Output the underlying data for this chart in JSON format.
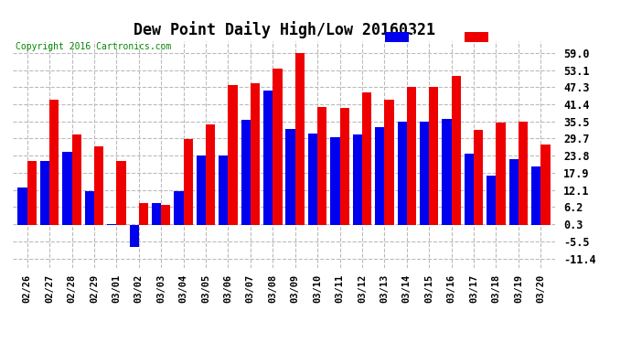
{
  "title": "Dew Point Daily High/Low 20160321",
  "copyright": "Copyright 2016 Cartronics.com",
  "dates": [
    "02/26",
    "02/27",
    "02/28",
    "02/29",
    "03/01",
    "03/02",
    "03/03",
    "03/04",
    "03/05",
    "03/06",
    "03/07",
    "03/08",
    "03/09",
    "03/10",
    "03/11",
    "03/12",
    "03/13",
    "03/14",
    "03/15",
    "03/16",
    "03/17",
    "03/18",
    "03/19",
    "03/20"
  ],
  "low_values": [
    13.0,
    22.0,
    25.0,
    11.5,
    0.3,
    -7.5,
    7.5,
    11.5,
    24.0,
    24.0,
    36.0,
    46.0,
    33.0,
    31.5,
    30.0,
    31.0,
    33.5,
    35.5,
    35.5,
    36.5,
    24.5,
    17.0,
    22.5,
    20.0
  ],
  "high_values": [
    22.0,
    43.0,
    31.0,
    27.0,
    22.0,
    7.5,
    7.0,
    29.5,
    34.5,
    48.0,
    48.5,
    53.5,
    59.0,
    40.5,
    40.0,
    45.5,
    43.0,
    47.5,
    47.5,
    51.0,
    32.5,
    35.0,
    35.5,
    27.5
  ],
  "low_color": "#0000ee",
  "high_color": "#ee0000",
  "bg_color": "#ffffff",
  "grid_color": "#bbbbbb",
  "yticks": [
    -11.4,
    -5.5,
    0.3,
    6.2,
    12.1,
    17.9,
    23.8,
    29.7,
    35.5,
    41.4,
    47.3,
    53.1,
    59.0
  ],
  "ylim": [
    -14.5,
    63.0
  ],
  "bar_width": 0.42
}
